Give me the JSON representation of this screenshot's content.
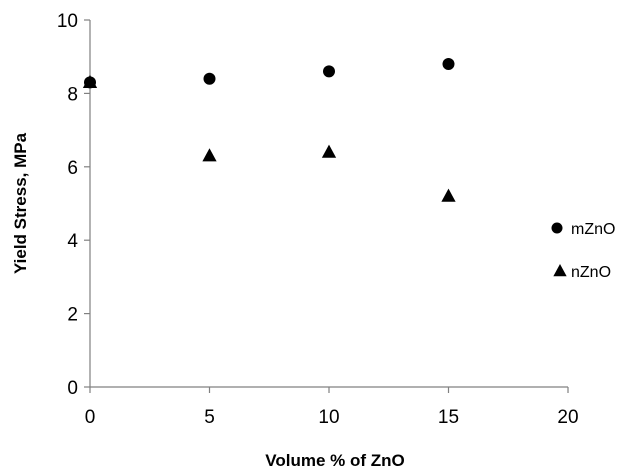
{
  "chart_data": {
    "type": "scatter",
    "title": "",
    "xlabel": "Volume % of ZnO",
    "ylabel": "Yield Stress, MPa",
    "xlim": [
      0,
      20
    ],
    "ylim": [
      0,
      10
    ],
    "xticks": [
      0,
      5,
      10,
      15,
      20
    ],
    "yticks": [
      0,
      2,
      4,
      6,
      8,
      10
    ],
    "grid": false,
    "legend_position": "right",
    "series": [
      {
        "name": "mZnO",
        "marker": "circle",
        "color": "#000000",
        "x": [
          0,
          5,
          10,
          15
        ],
        "y": [
          8.3,
          8.4,
          8.6,
          8.8
        ]
      },
      {
        "name": "nZnO",
        "marker": "triangle",
        "color": "#000000",
        "x": [
          0,
          5,
          10,
          15
        ],
        "y": [
          8.3,
          6.3,
          6.4,
          5.2
        ]
      }
    ]
  }
}
